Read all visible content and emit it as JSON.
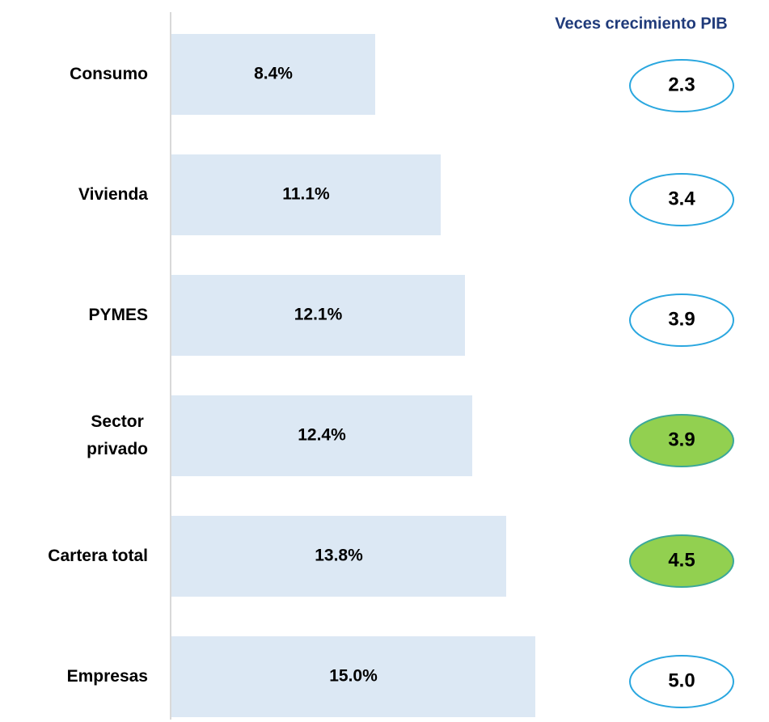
{
  "chart_data": {
    "type": "bar",
    "orientation": "horizontal",
    "categories": [
      "Consumo",
      "Vivienda",
      "PYMES",
      "Sector\nprivado",
      "Cartera total",
      "Empresas"
    ],
    "values": [
      8.4,
      11.1,
      12.1,
      12.4,
      13.8,
      15.0
    ],
    "value_labels": [
      "8.4%",
      "11.1%",
      "12.1%",
      "12.4%",
      "13.8%",
      "15.0%"
    ],
    "color": "#dce8f4",
    "xlim": [
      0,
      15
    ],
    "ratio": {
      "title": "Veces crecimiento PIB",
      "values": [
        2.3,
        3.4,
        3.9,
        3.9,
        4.5,
        5.0
      ],
      "value_labels": [
        "2.3",
        "3.4",
        "3.9",
        "3.9",
        "4.5",
        "5.0"
      ],
      "highlight": [
        false,
        false,
        false,
        true,
        true,
        false
      ],
      "stroke": "#2aa7df",
      "highlight_color": "#92d050",
      "highlight_stroke": "#3aa89a"
    }
  }
}
